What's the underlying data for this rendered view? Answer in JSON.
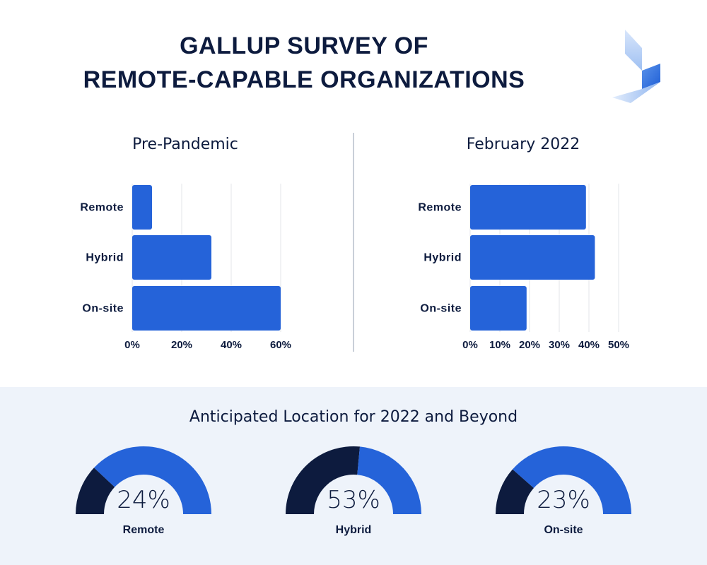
{
  "title": {
    "line1": "GALLUP SURVEY OF",
    "line2": "REMOTE-CAPABLE ORGANIZATIONS"
  },
  "colors": {
    "bar": "#2563d9",
    "dark": "#0d1b3e",
    "grid": "#e3e6ea",
    "bottom_bg": "#eef3fa"
  },
  "logo": {
    "icon": "brand-logo-icon"
  },
  "chart_data": [
    {
      "type": "bar",
      "orientation": "horizontal",
      "title": "Pre-Pandemic",
      "categories": [
        "Remote",
        "Hybrid",
        "On-site"
      ],
      "values": [
        8,
        32,
        60
      ],
      "xlim": [
        0,
        60
      ],
      "xticks": [
        "0%",
        "20%",
        "40%",
        "60%"
      ],
      "grid": true
    },
    {
      "type": "bar",
      "orientation": "horizontal",
      "title": "February 2022",
      "categories": [
        "Remote",
        "Hybrid",
        "On-site"
      ],
      "values": [
        39,
        42,
        19
      ],
      "xlim": [
        0,
        50
      ],
      "xticks": [
        "0%",
        "10%",
        "20%",
        "30%",
        "40%",
        "50%"
      ],
      "grid": true
    },
    {
      "type": "pie",
      "style": "gauge",
      "title": "Anticipated Location for 2022 and Beyond",
      "items": [
        {
          "label": "Remote",
          "value": 24,
          "display": "24%"
        },
        {
          "label": "Hybrid",
          "value": 53,
          "display": "53%"
        },
        {
          "label": "On-site",
          "value": 23,
          "display": "23%"
        }
      ]
    }
  ]
}
